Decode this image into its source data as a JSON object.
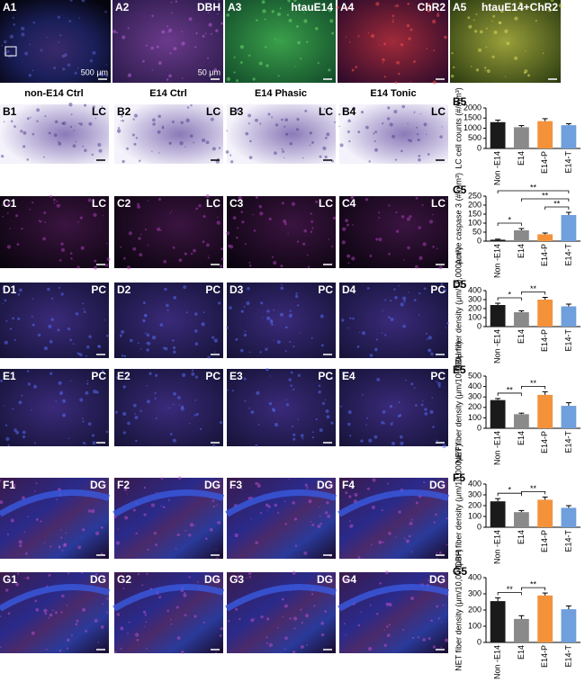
{
  "figure": {
    "column_headers": [
      "non-E14 Ctrl",
      "E14 Ctrl",
      "E14 Phasic",
      "E14 Tonic"
    ],
    "panels": [
      {
        "id": "A1",
        "scale": "500 μm"
      },
      {
        "id": "A2",
        "label": "DBH",
        "scale": "50 μm"
      },
      {
        "id": "A3",
        "label": "htauE14"
      },
      {
        "id": "A4",
        "label": "ChR2"
      },
      {
        "id": "A5",
        "label": "htauE14+ChR2"
      },
      {
        "id": "B1",
        "label": "LC"
      },
      {
        "id": "B2",
        "label": "LC"
      },
      {
        "id": "B3",
        "label": "LC"
      },
      {
        "id": "B4",
        "label": "LC"
      },
      {
        "id": "C1",
        "label": "LC"
      },
      {
        "id": "C2",
        "label": "LC"
      },
      {
        "id": "C3",
        "label": "LC"
      },
      {
        "id": "C4",
        "label": "LC"
      },
      {
        "id": "D1",
        "label": "PC"
      },
      {
        "id": "D2",
        "label": "PC"
      },
      {
        "id": "D3",
        "label": "PC"
      },
      {
        "id": "D4",
        "label": "PC"
      },
      {
        "id": "E1",
        "label": "PC"
      },
      {
        "id": "E2",
        "label": "PC"
      },
      {
        "id": "E3",
        "label": "PC"
      },
      {
        "id": "E4",
        "label": "PC"
      },
      {
        "id": "F1",
        "label": "DG"
      },
      {
        "id": "F2",
        "label": "DG"
      },
      {
        "id": "F3",
        "label": "DG"
      },
      {
        "id": "F4",
        "label": "DG"
      },
      {
        "id": "G1",
        "label": "DG"
      },
      {
        "id": "G2",
        "label": "DG"
      },
      {
        "id": "G3",
        "label": "DG"
      },
      {
        "id": "G4",
        "label": "DG"
      }
    ]
  },
  "chart_data": [
    {
      "type": "bar",
      "title": "B5",
      "ylabel": "LC cell counts (#/mm³)",
      "categories": [
        "Non -E14",
        "E14",
        "E14-P",
        "E14-T"
      ],
      "colors": [
        "#1a1a1a",
        "#8a8a8a",
        "#f4923a",
        "#6f9fdc"
      ],
      "values": [
        1300,
        1050,
        1350,
        1150
      ],
      "errors": [
        100,
        80,
        120,
        70
      ],
      "ylim": [
        0,
        2000
      ],
      "yticks": [
        0,
        500,
        1000,
        1500,
        2000
      ]
    },
    {
      "type": "bar",
      "title": "C5",
      "ylabel": "Active caspase 3 (#/mm³)",
      "categories": [
        "Non -E14",
        "E14",
        "E14-P",
        "E14-T"
      ],
      "colors": [
        "#1a1a1a",
        "#8a8a8a",
        "#f4923a",
        "#6f9fdc"
      ],
      "values": [
        8,
        60,
        38,
        145
      ],
      "errors": [
        3,
        10,
        7,
        15
      ],
      "ylim": [
        0,
        250
      ],
      "yticks": [
        0,
        50,
        100,
        150,
        200,
        250
      ],
      "annotations": [
        "*",
        "**",
        "**",
        "**"
      ]
    },
    {
      "type": "bar",
      "title": "D5",
      "ylabel": "DBH fiber density (μm/10,000μm²)",
      "categories": [
        "Non -E14",
        "E14",
        "E14-P",
        "E14-T"
      ],
      "colors": [
        "#1a1a1a",
        "#8a8a8a",
        "#f4923a",
        "#6f9fdc"
      ],
      "values": [
        240,
        160,
        300,
        225
      ],
      "errors": [
        20,
        15,
        25,
        25
      ],
      "ylim": [
        0,
        400
      ],
      "yticks": [
        0,
        100,
        200,
        300,
        400
      ],
      "annotations": [
        "*",
        "**"
      ]
    },
    {
      "type": "bar",
      "title": "E5",
      "ylabel": "NET fiber density (μm/10,000μm²)",
      "categories": [
        "Non -E14",
        "E14",
        "E14-P",
        "E14-T"
      ],
      "colors": [
        "#1a1a1a",
        "#8a8a8a",
        "#f4923a",
        "#6f9fdc"
      ],
      "values": [
        270,
        135,
        320,
        215
      ],
      "errors": [
        15,
        10,
        30,
        30
      ],
      "ylim": [
        0,
        500
      ],
      "yticks": [
        0,
        100,
        200,
        300,
        400,
        500
      ],
      "annotations": [
        "**",
        "**"
      ]
    },
    {
      "type": "bar",
      "title": "F5",
      "ylabel": "DBH fiber density (μm/10,000μm²)",
      "categories": [
        "Non -E14",
        "E14",
        "E14-P",
        "E14-T"
      ],
      "colors": [
        "#1a1a1a",
        "#8a8a8a",
        "#f4923a",
        "#6f9fdc"
      ],
      "values": [
        240,
        140,
        255,
        180
      ],
      "errors": [
        25,
        15,
        25,
        20
      ],
      "ylim": [
        0,
        400
      ],
      "yticks": [
        0,
        100,
        200,
        300,
        400
      ],
      "annotations": [
        "*",
        "**"
      ]
    },
    {
      "type": "bar",
      "title": "G5",
      "ylabel": "NET fiber density (μm/10,000μm²)",
      "categories": [
        "Non -E14",
        "E14",
        "E14-P",
        "E14-T"
      ],
      "colors": [
        "#1a1a1a",
        "#8a8a8a",
        "#f4923a",
        "#6f9fdc"
      ],
      "values": [
        255,
        145,
        290,
        205
      ],
      "errors": [
        20,
        20,
        15,
        20
      ],
      "ylim": [
        0,
        400
      ],
      "yticks": [
        0,
        100,
        200,
        300,
        400
      ],
      "annotations": [
        "**",
        "**"
      ]
    }
  ]
}
